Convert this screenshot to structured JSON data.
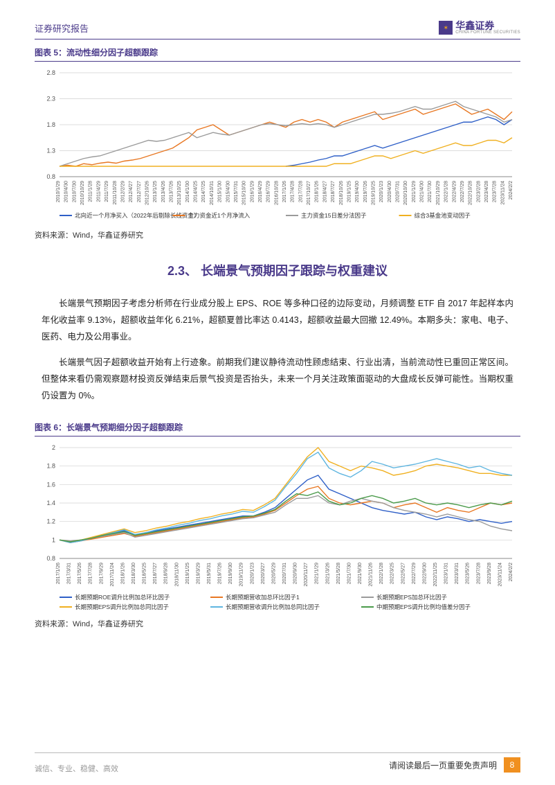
{
  "header": {
    "report_type": "证券研究报告",
    "logo_cn": "华鑫证券",
    "logo_en": "CHINA FORTUNE SECURITIES"
  },
  "chart5": {
    "title": "图表 5：流动性细分因子超额跟踪",
    "type": "line",
    "ylim": [
      0.8,
      2.8
    ],
    "yticks": [
      0.8,
      1.3,
      1.8,
      2.3,
      2.8
    ],
    "x_labels": [
      "2010/1/29",
      "2010/4/30",
      "2010/7/30",
      "2010/10/29",
      "2011/1/28",
      "2011/4/29",
      "2011/7/29",
      "2011/10/28",
      "2012/2/29",
      "2012/4/27",
      "2012/7/27",
      "2012/10/26",
      "2013/1/25",
      "2013/4/26",
      "2013/7/26",
      "2013/10/25",
      "2014/1/30",
      "2014/4/25",
      "2014/7/25",
      "2014/10/31",
      "2015/1/30",
      "2015/4/30",
      "2015/7/31",
      "2015/10/30",
      "2016/1/29",
      "2016/4/29",
      "2016/7/29",
      "2016/10/28",
      "2017/1/26",
      "2017/4/28",
      "2017/7/28",
      "2017/10/27",
      "2018/1/26",
      "2018/4/27",
      "2018/7/27",
      "2018/10/26",
      "2019/1/25",
      "2019/4/30",
      "2019/7/26",
      "2019/10/25",
      "2020/1/23",
      "2020/4/30",
      "2020/7/31",
      "2020/10/30",
      "2021/1/29",
      "2021/4/30",
      "2021/7/30",
      "2021/10/29",
      "2022/1/28",
      "2022/4/29",
      "2022/7/29",
      "2022/10/28",
      "2023/2/28",
      "2023/4/28",
      "2023/7/28",
      "2023/11/24",
      "2024/2/2"
    ],
    "series": [
      {
        "name": "北向近一个月净买入（2022年后剔除长线资金）",
        "color": "#2e5fc7",
        "values": [
          null,
          null,
          null,
          null,
          null,
          null,
          null,
          null,
          null,
          null,
          null,
          null,
          null,
          null,
          null,
          null,
          null,
          null,
          null,
          null,
          null,
          null,
          null,
          null,
          null,
          null,
          null,
          null,
          1.0,
          1.02,
          1.05,
          1.08,
          1.12,
          1.15,
          1.2,
          1.2,
          1.25,
          1.3,
          1.35,
          1.4,
          1.35,
          1.4,
          1.45,
          1.5,
          1.55,
          1.6,
          1.65,
          1.7,
          1.75,
          1.8,
          1.85,
          1.85,
          1.9,
          1.95,
          1.9,
          1.8,
          1.9
        ]
      },
      {
        "name": "主力资金近1个月净流入",
        "color": "#e87722",
        "values": [
          1.0,
          1.02,
          1.0,
          1.05,
          1.03,
          1.06,
          1.08,
          1.06,
          1.1,
          1.12,
          1.15,
          1.2,
          1.25,
          1.3,
          1.35,
          1.45,
          1.55,
          1.7,
          1.75,
          1.8,
          1.7,
          1.6,
          1.65,
          1.7,
          1.75,
          1.8,
          1.85,
          1.8,
          1.75,
          1.85,
          1.9,
          1.85,
          1.9,
          1.85,
          1.75,
          1.85,
          1.9,
          1.95,
          2.0,
          2.05,
          1.9,
          1.95,
          2.0,
          2.05,
          2.1,
          2.0,
          2.05,
          2.1,
          2.15,
          2.2,
          2.1,
          2.0,
          2.05,
          2.1,
          2.0,
          1.9,
          2.05
        ]
      },
      {
        "name": "主力资金15日差分法因子",
        "color": "#9a9a9a",
        "values": [
          1.0,
          1.05,
          1.1,
          1.15,
          1.18,
          1.2,
          1.25,
          1.3,
          1.35,
          1.4,
          1.45,
          1.5,
          1.48,
          1.5,
          1.55,
          1.6,
          1.65,
          1.55,
          1.6,
          1.65,
          1.62,
          1.6,
          1.65,
          1.7,
          1.75,
          1.8,
          1.82,
          1.8,
          1.78,
          1.8,
          1.82,
          1.8,
          1.82,
          1.8,
          1.75,
          1.8,
          1.85,
          1.9,
          1.95,
          2.0,
          2.0,
          2.02,
          2.05,
          2.1,
          2.15,
          2.1,
          2.1,
          2.15,
          2.2,
          2.25,
          2.15,
          2.1,
          2.05,
          2.0,
          1.95,
          1.85,
          1.9
        ]
      },
      {
        "name": "综合3基金池变动因子",
        "color": "#f0b020",
        "values": [
          1.0,
          1.0,
          1.0,
          1.0,
          1.0,
          1.0,
          1.0,
          1.0,
          1.0,
          1.0,
          1.0,
          1.0,
          1.0,
          1.0,
          1.0,
          1.0,
          1.0,
          1.0,
          1.0,
          1.0,
          1.0,
          1.0,
          1.0,
          1.0,
          1.0,
          1.0,
          1.0,
          1.0,
          1.0,
          1.0,
          1.0,
          1.0,
          1.0,
          1.0,
          1.05,
          1.05,
          1.05,
          1.1,
          1.15,
          1.2,
          1.2,
          1.15,
          1.2,
          1.25,
          1.3,
          1.25,
          1.3,
          1.35,
          1.4,
          1.45,
          1.4,
          1.4,
          1.45,
          1.5,
          1.5,
          1.45,
          1.55
        ]
      }
    ],
    "background_color": "#ffffff",
    "grid_color": "#d0d0d0",
    "axis_color": "#888888",
    "label_fontsize": 7,
    "source": "资料来源：Wind，华鑫证券研究"
  },
  "section": {
    "heading": "2.3、 长端景气预期因子跟踪与权重建议",
    "p1": "长端景气预期因子考虑分析师在行业成分股上 EPS、ROE 等多种口径的边际变动，月频调整 ETF 自 2017 年起样本内年化收益率 9.13%，超额收益年化 6.21%，超额夏普比率达 0.4143，超额收益最大回撤 12.49%。本期多头：家电、电子、医药、电力及公用事业。",
    "p2": "长端景气因子超额收益开始有上行迹象。前期我们建议静待流动性顾虑结束、行业出清，当前流动性已重回正常区间。但整体来看仍需观察题材投资反弹结束后景气投资是否抬头，未来一个月关注政策面驱动的大盘成长反弹可能性。当期权重仍设置为 0%。"
  },
  "chart6": {
    "title": "图表 6：长端景气预期细分因子超额跟踪",
    "type": "line",
    "ylim": [
      0.8,
      2.0
    ],
    "yticks": [
      0.8,
      1.0,
      1.2,
      1.4,
      1.6,
      1.8,
      2.0
    ],
    "x_labels": [
      "2017/1/26",
      "2017/3/31",
      "2017/5/26",
      "2017/7/28",
      "2017/9/29",
      "2017/11/24",
      "2018/1/26",
      "2018/3/30",
      "2018/5/25",
      "2018/7/27",
      "2018/9/28",
      "2018/11/30",
      "2019/1/25",
      "2019/3/29",
      "2019/5/31",
      "2019/7/26",
      "2019/9/30",
      "2019/11/29",
      "2020/1/23",
      "2020/3/27",
      "2020/5/29",
      "2020/7/31",
      "2020/9/30",
      "2020/11/27",
      "2021/1/29",
      "2021/3/26",
      "2021/5/28",
      "2021/7/30",
      "2021/9/30",
      "2021/11/26",
      "2022/1/28",
      "2022/3/25",
      "2022/5/27",
      "2022/7/29",
      "2022/9/30",
      "2022/11/25",
      "2023/1/31",
      "2023/3/31",
      "2023/5/26",
      "2023/7/28",
      "2023/9/28",
      "2023/11/24",
      "2024/2/2"
    ],
    "series": [
      {
        "name": "长期预期ROE调升比例加总环比因子",
        "color": "#2e5fc7",
        "values": [
          1.0,
          0.98,
          1.0,
          1.02,
          1.05,
          1.08,
          1.1,
          1.05,
          1.08,
          1.1,
          1.12,
          1.14,
          1.16,
          1.18,
          1.2,
          1.22,
          1.24,
          1.26,
          1.26,
          1.3,
          1.35,
          1.45,
          1.55,
          1.65,
          1.7,
          1.55,
          1.5,
          1.45,
          1.4,
          1.35,
          1.32,
          1.3,
          1.28,
          1.3,
          1.25,
          1.22,
          1.25,
          1.23,
          1.2,
          1.22,
          1.2,
          1.18,
          1.2
        ]
      },
      {
        "name": "长期预期营收加总环比因子1",
        "color": "#e87722",
        "values": [
          1.0,
          0.97,
          0.99,
          1.01,
          1.03,
          1.05,
          1.07,
          1.04,
          1.06,
          1.08,
          1.1,
          1.12,
          1.14,
          1.16,
          1.18,
          1.2,
          1.22,
          1.24,
          1.25,
          1.28,
          1.32,
          1.4,
          1.48,
          1.55,
          1.58,
          1.45,
          1.4,
          1.38,
          1.4,
          1.42,
          1.4,
          1.35,
          1.38,
          1.4,
          1.35,
          1.3,
          1.35,
          1.32,
          1.3,
          1.35,
          1.4,
          1.38,
          1.4
        ]
      },
      {
        "name": "长期预期EPS加总环比因子",
        "color": "#9a9a9a",
        "values": [
          1.0,
          0.99,
          1.0,
          1.02,
          1.04,
          1.06,
          1.08,
          1.03,
          1.05,
          1.07,
          1.09,
          1.11,
          1.13,
          1.15,
          1.17,
          1.19,
          1.21,
          1.23,
          1.24,
          1.27,
          1.3,
          1.38,
          1.45,
          1.45,
          1.48,
          1.4,
          1.38,
          1.42,
          1.45,
          1.42,
          1.4,
          1.35,
          1.32,
          1.3,
          1.28,
          1.25,
          1.28,
          1.25,
          1.22,
          1.2,
          1.15,
          1.12,
          1.1
        ]
      },
      {
        "name": "长期预期EPS调升比例加总同比因子",
        "color": "#f0b020",
        "values": [
          1.0,
          0.98,
          1.0,
          1.03,
          1.06,
          1.09,
          1.12,
          1.08,
          1.1,
          1.13,
          1.15,
          1.18,
          1.2,
          1.23,
          1.25,
          1.28,
          1.3,
          1.33,
          1.32,
          1.38,
          1.45,
          1.6,
          1.75,
          1.9,
          2.0,
          1.85,
          1.8,
          1.75,
          1.8,
          1.78,
          1.75,
          1.7,
          1.72,
          1.75,
          1.8,
          1.82,
          1.8,
          1.78,
          1.75,
          1.72,
          1.72,
          1.7,
          1.7
        ]
      },
      {
        "name": "长期预期营收调升比例加总同比因子",
        "color": "#5eb5e0",
        "values": [
          1.0,
          0.97,
          0.99,
          1.02,
          1.05,
          1.08,
          1.11,
          1.06,
          1.08,
          1.11,
          1.13,
          1.16,
          1.18,
          1.21,
          1.23,
          1.26,
          1.28,
          1.31,
          1.3,
          1.36,
          1.43,
          1.58,
          1.72,
          1.88,
          1.95,
          1.78,
          1.72,
          1.68,
          1.75,
          1.85,
          1.82,
          1.78,
          1.8,
          1.82,
          1.85,
          1.88,
          1.85,
          1.82,
          1.78,
          1.8,
          1.75,
          1.72,
          1.7
        ]
      },
      {
        "name": "中期预期EPS调升比例均值差分因子",
        "color": "#4a9a4a",
        "values": [
          1.0,
          0.98,
          1.0,
          1.02,
          1.05,
          1.07,
          1.09,
          1.05,
          1.07,
          1.09,
          1.11,
          1.13,
          1.15,
          1.17,
          1.19,
          1.21,
          1.23,
          1.25,
          1.26,
          1.29,
          1.33,
          1.42,
          1.5,
          1.48,
          1.52,
          1.42,
          1.38,
          1.4,
          1.45,
          1.48,
          1.45,
          1.4,
          1.42,
          1.45,
          1.4,
          1.38,
          1.4,
          1.38,
          1.35,
          1.38,
          1.4,
          1.38,
          1.42
        ]
      }
    ],
    "background_color": "#ffffff",
    "grid_color": "#d0d0d0",
    "axis_color": "#888888",
    "label_fontsize": 7,
    "source": "资料来源：Wind，华鑫证券研究"
  },
  "footer": {
    "slogan": "诚信、专业、稳健、高效",
    "disclaimer": "请阅读最后一页重要免责声明",
    "page": "8"
  }
}
